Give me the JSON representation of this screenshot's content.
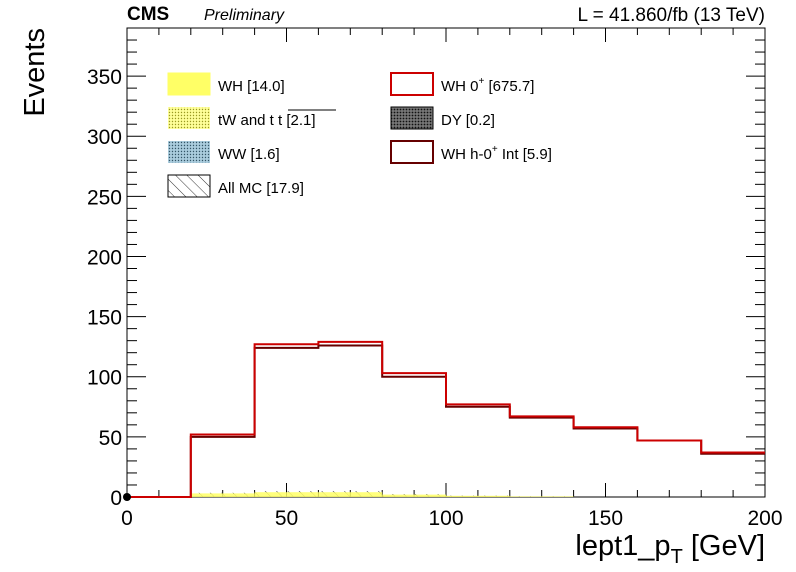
{
  "header": {
    "experiment": "CMS",
    "status": "Preliminary",
    "lumi": "L = 41.860/fb (13 TeV)"
  },
  "chart_data": {
    "type": "histogram",
    "xlabel_main": "lept1_p",
    "xlabel_sub": "T",
    "xlabel_unit": " [GeV]",
    "ylabel": "Events",
    "xlim": [
      0,
      200
    ],
    "ylim": [
      0,
      390
    ],
    "xticks": [
      0,
      50,
      100,
      150,
      200
    ],
    "yticks": [
      0,
      50,
      100,
      150,
      200,
      250,
      300,
      350
    ],
    "bin_edges": [
      0,
      20,
      40,
      60,
      80,
      100,
      120,
      140,
      160,
      180,
      200
    ],
    "legend": [
      {
        "label": "WH [14.0]",
        "style": "fill",
        "color": "#ffff66"
      },
      {
        "label": "tW and t t [2.1]",
        "style": "hatch-dots",
        "color": "#cccc33"
      },
      {
        "label": "WW [1.6]",
        "style": "hatch-dots",
        "color": "#6699aa"
      },
      {
        "label": "All MC [17.9]",
        "style": "hatch-lines",
        "color": "#000000"
      },
      {
        "label": "WH 0",
        "sup": "+",
        "rest": " [675.7]",
        "style": "line",
        "color": "#cc0000"
      },
      {
        "label": "DY [0.2]",
        "style": "hatch-dense",
        "color": "#000000"
      },
      {
        "label": "WH h-0",
        "sup": "+",
        "rest": " Int [5.9]",
        "style": "line",
        "color": "#660000"
      }
    ],
    "series": [
      {
        "name": "WH 0+",
        "color": "#cc0000",
        "values": [
          0,
          52,
          127,
          129,
          103,
          77,
          67,
          58,
          47,
          37
        ]
      },
      {
        "name": "WH h-0+ Int",
        "color": "#660000",
        "values": [
          0,
          50,
          124,
          126,
          100,
          75,
          66,
          57,
          47,
          36
        ]
      },
      {
        "name": "WH",
        "color": "#ffff66",
        "values": [
          0,
          3,
          4,
          4,
          2,
          1,
          0.5,
          0,
          0,
          0
        ]
      },
      {
        "name": "All MC",
        "color": "#000000",
        "values": [
          0,
          3.5,
          5,
          5,
          2.5,
          1.2,
          0.6,
          0,
          0,
          0
        ]
      }
    ]
  }
}
